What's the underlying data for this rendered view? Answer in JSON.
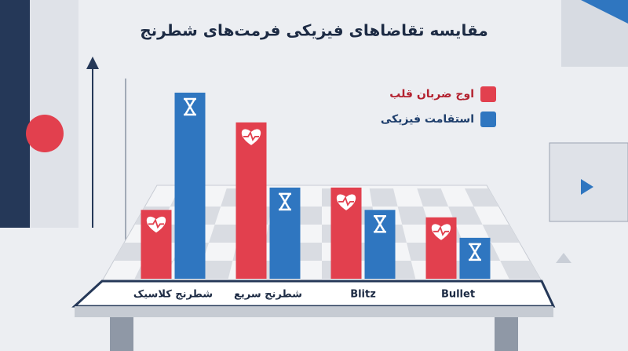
{
  "chart_data": {
    "type": "bar",
    "title": "مقایسه تقاضاهای فیزیکی فرمت‌های شطرنج",
    "categories": [
      "شطرنج کلاسیک",
      "شطرنج سریع",
      "Blitz",
      "Bullet"
    ],
    "series": [
      {
        "name": "اوج ضربان قلب",
        "color": "#e2404e",
        "values": [
          37,
          84,
          49,
          33
        ]
      },
      {
        "name": "استقامت فیزیکی",
        "color": "#2f76c0",
        "values": [
          100,
          49,
          37,
          22
        ]
      }
    ]
  }
}
